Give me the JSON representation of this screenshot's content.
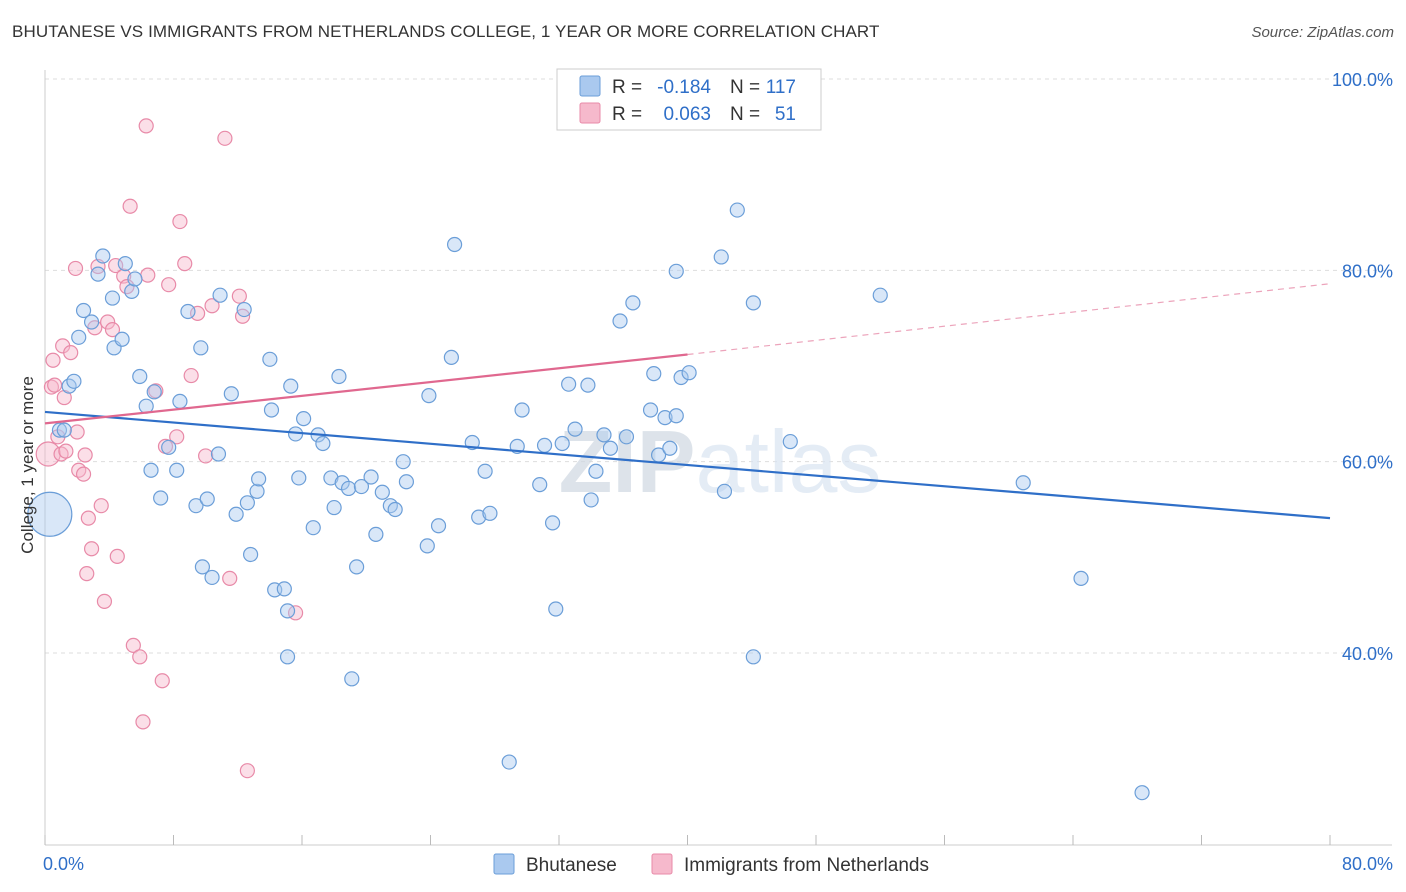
{
  "header": {
    "title": "BHUTANESE VS IMMIGRANTS FROM NETHERLANDS COLLEGE, 1 YEAR OR MORE CORRELATION CHART",
    "source": "Source: ZipAtlas.com"
  },
  "watermark": "ZIPatlas",
  "legend_box": {
    "rows": [
      {
        "r_label": "R =",
        "r_value": "-0.184",
        "n_label": "N =",
        "n_value": "117"
      },
      {
        "r_label": "R =",
        "r_value": "0.063",
        "n_label": "N =",
        "n_value": "51"
      }
    ]
  },
  "colors": {
    "blue_fill": "#aac9ef",
    "blue_stroke": "#6b9ed8",
    "blue_line": "#2f6fc8",
    "pink_fill": "#f6b9cc",
    "pink_stroke": "#e88aa8",
    "pink_line": "#e0688f",
    "value_text": "#2f6fc8",
    "grid": "#dddddd"
  },
  "chart_data": {
    "type": "scatter",
    "title": "BHUTANESE VS IMMIGRANTS FROM NETHERLANDS COLLEGE, 1 YEAR OR MORE CORRELATION CHART",
    "xlabel": "",
    "ylabel": "College, 1 year or more",
    "xlim": [
      0,
      80
    ],
    "ylim": [
      20,
      102
    ],
    "x_tick_labels": [
      "0.0%",
      "80.0%"
    ],
    "y_tick_labels": [
      "40.0%",
      "60.0%",
      "80.0%",
      "100.0%"
    ],
    "y_tick_values": [
      40,
      60,
      80,
      100
    ],
    "grid": true,
    "legend_position": "bottom",
    "series": [
      {
        "name": "Bhutanese",
        "r": -0.184,
        "n": 117,
        "trend": {
          "x": [
            0,
            80
          ],
          "y": [
            65.2,
            54.1
          ],
          "dashed_from": null
        },
        "points": [
          [
            0.3,
            54.5,
            22
          ],
          [
            0.9,
            63.3,
            7
          ],
          [
            1.2,
            63.3,
            7
          ],
          [
            1.5,
            67.9,
            7
          ],
          [
            1.8,
            68.4,
            7
          ],
          [
            2.1,
            73,
            7
          ],
          [
            2.4,
            75.8,
            7
          ],
          [
            2.9,
            74.6,
            7
          ],
          [
            3.3,
            79.6,
            7
          ],
          [
            3.6,
            81.5,
            7
          ],
          [
            4.2,
            77.1,
            7
          ],
          [
            4.3,
            71.9,
            7
          ],
          [
            4.8,
            72.8,
            7
          ],
          [
            5.0,
            80.7,
            7
          ],
          [
            5.4,
            77.8,
            7
          ],
          [
            5.6,
            79.1,
            7
          ],
          [
            5.9,
            68.9,
            7
          ],
          [
            6.3,
            65.8,
            7
          ],
          [
            6.6,
            59.1,
            7
          ],
          [
            6.8,
            67.3,
            7
          ],
          [
            7.2,
            56.2,
            7
          ],
          [
            7.7,
            61.5,
            7
          ],
          [
            8.2,
            59.1,
            7
          ],
          [
            8.4,
            66.3,
            7
          ],
          [
            8.9,
            75.7,
            7
          ],
          [
            9.4,
            55.4,
            7
          ],
          [
            9.7,
            71.9,
            7
          ],
          [
            9.8,
            49,
            7
          ],
          [
            10.1,
            56.1,
            7
          ],
          [
            10.4,
            47.9,
            7
          ],
          [
            10.8,
            60.8,
            7
          ],
          [
            10.9,
            77.4,
            7
          ],
          [
            11.6,
            67.1,
            7
          ],
          [
            11.9,
            54.5,
            7
          ],
          [
            12.4,
            75.9,
            7
          ],
          [
            12.6,
            55.7,
            7
          ],
          [
            12.8,
            50.3,
            7
          ],
          [
            13.2,
            56.9,
            7
          ],
          [
            13.3,
            58.2,
            7
          ],
          [
            14.0,
            70.7,
            7
          ],
          [
            14.1,
            65.4,
            7
          ],
          [
            14.3,
            46.6,
            7
          ],
          [
            14.9,
            46.7,
            7
          ],
          [
            15.1,
            39.6,
            7
          ],
          [
            15.1,
            44.4,
            7
          ],
          [
            15.3,
            67.9,
            7
          ],
          [
            15.6,
            62.9,
            7
          ],
          [
            15.8,
            58.3,
            7
          ],
          [
            16.1,
            64.5,
            7
          ],
          [
            16.7,
            53.1,
            7
          ],
          [
            17.0,
            62.8,
            7
          ],
          [
            17.3,
            61.9,
            7
          ],
          [
            17.8,
            58.3,
            7
          ],
          [
            18.0,
            55.2,
            7
          ],
          [
            18.3,
            68.9,
            7
          ],
          [
            18.5,
            57.8,
            7
          ],
          [
            18.9,
            57.2,
            7
          ],
          [
            19.1,
            37.3,
            7
          ],
          [
            19.4,
            49,
            7
          ],
          [
            19.7,
            57.4,
            7
          ],
          [
            20.3,
            58.4,
            7
          ],
          [
            20.6,
            52.4,
            7
          ],
          [
            21.0,
            56.8,
            7
          ],
          [
            21.5,
            55.4,
            7
          ],
          [
            21.8,
            55,
            7
          ],
          [
            22.3,
            60,
            7
          ],
          [
            22.5,
            57.9,
            7
          ],
          [
            23.8,
            51.2,
            7
          ],
          [
            23.9,
            66.9,
            7
          ],
          [
            24.5,
            53.3,
            7
          ],
          [
            25.3,
            70.9,
            7
          ],
          [
            25.5,
            82.7,
            7
          ],
          [
            26.6,
            62,
            7
          ],
          [
            27.0,
            54.2,
            7
          ],
          [
            27.4,
            59,
            7
          ],
          [
            27.7,
            54.6,
            7
          ],
          [
            28.9,
            28.6,
            7
          ],
          [
            29.4,
            61.6,
            7
          ],
          [
            29.7,
            65.4,
            7
          ],
          [
            30.8,
            57.6,
            7
          ],
          [
            31.1,
            61.7,
            7
          ],
          [
            31.6,
            53.6,
            7
          ],
          [
            31.8,
            44.6,
            7
          ],
          [
            32.2,
            61.9,
            7
          ],
          [
            32.6,
            68.1,
            7
          ],
          [
            33.0,
            63.4,
            7
          ],
          [
            33.8,
            68,
            7
          ],
          [
            34.0,
            56,
            7
          ],
          [
            34.3,
            59,
            7
          ],
          [
            34.8,
            62.8,
            7
          ],
          [
            35.2,
            61.4,
            7
          ],
          [
            35.8,
            74.7,
            7
          ],
          [
            36.2,
            62.6,
            7
          ],
          [
            36.6,
            76.6,
            7
          ],
          [
            37.7,
            65.4,
            7
          ],
          [
            37.9,
            69.2,
            7
          ],
          [
            38.2,
            60.7,
            7
          ],
          [
            38.6,
            64.6,
            7
          ],
          [
            38.9,
            61.4,
            7
          ],
          [
            39.3,
            79.9,
            7
          ],
          [
            39.3,
            64.8,
            7
          ],
          [
            39.6,
            68.8,
            7
          ],
          [
            40.1,
            69.3,
            7
          ],
          [
            42.1,
            81.4,
            7
          ],
          [
            42.3,
            56.9,
            7
          ],
          [
            43.1,
            86.3,
            7
          ],
          [
            44.1,
            76.6,
            7
          ],
          [
            44.1,
            39.6,
            7
          ],
          [
            46.4,
            62.1,
            7
          ],
          [
            52.0,
            77.4,
            7
          ],
          [
            60.9,
            57.8,
            7
          ],
          [
            64.5,
            47.8,
            7
          ],
          [
            68.3,
            25.4,
            7
          ]
        ]
      },
      {
        "name": "Immigrants from Netherlands",
        "r": 0.063,
        "n": 51,
        "trend": {
          "x": [
            0,
            40,
            80
          ],
          "y": [
            64.0,
            71.2,
            78.6
          ],
          "dashed_from": 40
        },
        "points": [
          [
            0.2,
            60.8,
            12
          ],
          [
            0.4,
            67.8,
            7
          ],
          [
            0.5,
            70.6,
            7
          ],
          [
            0.6,
            68,
            7
          ],
          [
            0.8,
            62.6,
            7
          ],
          [
            1.0,
            60.8,
            7
          ],
          [
            1.1,
            72.1,
            7
          ],
          [
            1.2,
            66.7,
            7
          ],
          [
            1.3,
            61.1,
            7
          ],
          [
            1.6,
            71.4,
            7
          ],
          [
            1.9,
            80.2,
            7
          ],
          [
            2.0,
            63.1,
            7
          ],
          [
            2.1,
            59.1,
            7
          ],
          [
            2.4,
            58.7,
            7
          ],
          [
            2.5,
            60.7,
            7
          ],
          [
            2.6,
            48.3,
            7
          ],
          [
            2.7,
            54.1,
            7
          ],
          [
            2.9,
            50.9,
            7
          ],
          [
            3.1,
            74,
            7
          ],
          [
            3.3,
            80.4,
            7
          ],
          [
            3.5,
            55.4,
            7
          ],
          [
            3.7,
            45.4,
            7
          ],
          [
            3.9,
            74.6,
            7
          ],
          [
            4.2,
            73.8,
            7
          ],
          [
            4.4,
            80.5,
            7
          ],
          [
            4.5,
            50.1,
            7
          ],
          [
            4.9,
            79.4,
            7
          ],
          [
            5.1,
            78.3,
            7
          ],
          [
            5.3,
            86.7,
            7
          ],
          [
            5.5,
            40.8,
            7
          ],
          [
            5.9,
            39.6,
            7
          ],
          [
            6.1,
            32.8,
            7
          ],
          [
            6.3,
            95.1,
            7
          ],
          [
            6.4,
            79.5,
            7
          ],
          [
            6.9,
            67.4,
            7
          ],
          [
            7.3,
            37.1,
            7
          ],
          [
            7.5,
            61.6,
            7
          ],
          [
            7.7,
            78.5,
            7
          ],
          [
            8.2,
            62.6,
            7
          ],
          [
            8.4,
            85.1,
            7
          ],
          [
            8.7,
            80.7,
            7
          ],
          [
            9.1,
            69,
            7
          ],
          [
            9.5,
            75.5,
            7
          ],
          [
            10.0,
            60.6,
            7
          ],
          [
            10.4,
            76.3,
            7
          ],
          [
            11.2,
            93.8,
            7
          ],
          [
            11.5,
            47.8,
            7
          ],
          [
            12.1,
            77.3,
            7
          ],
          [
            12.3,
            75.2,
            7
          ],
          [
            12.6,
            27.7,
            7
          ],
          [
            15.6,
            44.2,
            7
          ]
        ]
      }
    ]
  }
}
